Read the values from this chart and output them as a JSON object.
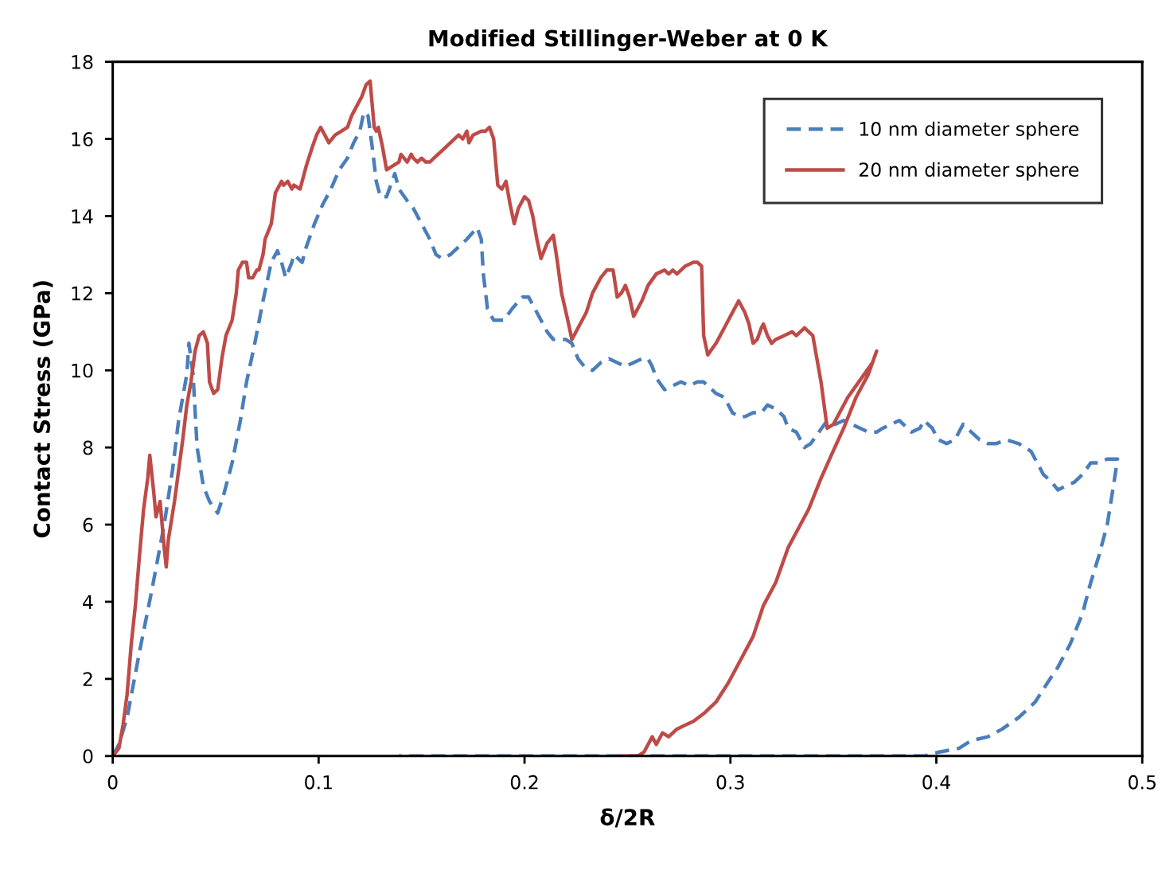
{
  "chart_data": {
    "type": "line",
    "title": "Modified Stillinger-Weber at 0 K",
    "xlabel": "δ/2R",
    "ylabel": "Contact Stress (GPa)",
    "xlim": [
      0,
      0.5
    ],
    "xticks": [
      0,
      0.1,
      0.2,
      0.3,
      0.4,
      0.5
    ],
    "ylim": [
      0,
      18
    ],
    "yticks": [
      0,
      2,
      4,
      6,
      8,
      10,
      12,
      14,
      16,
      18
    ],
    "grid": false,
    "legend": "top right",
    "marker": "none",
    "series": [
      {
        "name": "10 nm diameter sphere",
        "color": "#4a7ebb",
        "line_style": "dashed",
        "x": [
          0.0,
          0.003,
          0.007,
          0.013,
          0.019,
          0.025,
          0.029,
          0.032,
          0.036,
          0.037,
          0.039,
          0.041,
          0.044,
          0.047,
          0.051,
          0.054,
          0.058,
          0.062,
          0.065,
          0.069,
          0.073,
          0.077,
          0.08,
          0.082,
          0.084,
          0.087,
          0.088,
          0.092,
          0.094,
          0.098,
          0.102,
          0.106,
          0.11,
          0.114,
          0.117,
          0.12,
          0.122,
          0.124,
          0.126,
          0.128,
          0.13,
          0.133,
          0.135,
          0.137,
          0.139,
          0.143,
          0.146,
          0.15,
          0.154,
          0.157,
          0.16,
          0.164,
          0.168,
          0.172,
          0.177,
          0.179,
          0.18,
          0.182,
          0.185,
          0.19,
          0.194,
          0.199,
          0.202,
          0.205,
          0.208,
          0.211,
          0.214,
          0.22,
          0.223,
          0.226,
          0.229,
          0.233,
          0.237,
          0.241,
          0.245,
          0.249,
          0.253,
          0.257,
          0.26,
          0.262,
          0.264,
          0.268,
          0.272,
          0.276,
          0.28,
          0.284,
          0.287,
          0.291,
          0.293,
          0.297,
          0.301,
          0.304,
          0.307,
          0.311,
          0.315,
          0.318,
          0.322,
          0.326,
          0.328,
          0.332,
          0.336,
          0.339,
          0.343,
          0.347,
          0.351,
          0.355,
          0.359,
          0.363,
          0.367,
          0.371,
          0.374,
          0.378,
          0.382,
          0.384,
          0.388,
          0.392,
          0.394,
          0.398,
          0.401,
          0.405,
          0.409,
          0.413,
          0.417,
          0.421,
          0.425,
          0.429,
          0.434,
          0.44,
          0.446,
          0.449,
          0.452,
          0.456,
          0.459,
          0.463,
          0.467,
          0.471,
          0.475,
          0.479,
          0.483,
          0.488,
          0.486,
          0.483,
          0.479,
          0.475,
          0.471,
          0.465,
          0.459,
          0.454,
          0.448,
          0.44,
          0.432,
          0.425,
          0.417,
          0.411,
          0.401,
          0.394,
          0.386,
          0.139
        ],
        "values": [
          0,
          0.3,
          1.0,
          2.7,
          4.3,
          6.0,
          7.4,
          8.7,
          9.9,
          10.7,
          9.9,
          8.0,
          7.0,
          6.6,
          6.3,
          6.8,
          7.6,
          8.7,
          9.7,
          10.7,
          11.8,
          12.8,
          13.1,
          12.8,
          12.4,
          12.8,
          13.0,
          12.8,
          13.2,
          13.8,
          14.3,
          14.7,
          15.2,
          15.5,
          15.9,
          16.2,
          16.7,
          16.6,
          15.8,
          14.9,
          14.5,
          14.5,
          14.8,
          15.1,
          14.7,
          14.4,
          14.2,
          13.8,
          13.4,
          13.0,
          12.9,
          13.0,
          13.2,
          13.4,
          13.7,
          13.4,
          12.5,
          11.6,
          11.3,
          11.3,
          11.6,
          11.9,
          11.9,
          11.6,
          11.3,
          11.0,
          10.8,
          10.8,
          10.7,
          10.3,
          10.1,
          10.0,
          10.2,
          10.3,
          10.2,
          10.1,
          10.2,
          10.3,
          10.3,
          10.1,
          9.8,
          9.5,
          9.6,
          9.7,
          9.6,
          9.7,
          9.7,
          9.5,
          9.4,
          9.3,
          8.9,
          8.8,
          8.8,
          8.9,
          8.9,
          9.1,
          9.0,
          8.8,
          8.5,
          8.4,
          8.0,
          8.1,
          8.4,
          8.7,
          8.6,
          8.7,
          8.6,
          8.5,
          8.4,
          8.4,
          8.5,
          8.6,
          8.7,
          8.6,
          8.4,
          8.5,
          8.7,
          8.5,
          8.2,
          8.1,
          8.2,
          8.6,
          8.4,
          8.2,
          8.1,
          8.1,
          8.2,
          8.1,
          7.9,
          7.6,
          7.3,
          7.1,
          6.9,
          7.0,
          7.1,
          7.3,
          7.6,
          7.6,
          7.7,
          7.7,
          7.0,
          6.0,
          5.2,
          4.5,
          3.7,
          2.9,
          2.3,
          1.9,
          1.4,
          1.0,
          0.7,
          0.5,
          0.4,
          0.2,
          0.1,
          0,
          0,
          0
        ]
      },
      {
        "name": "20 nm diameter sphere",
        "color": "#be4b48",
        "line_style": "solid",
        "x": [
          0.0,
          0.003,
          0.005,
          0.007,
          0.009,
          0.011,
          0.013,
          0.015,
          0.017,
          0.018,
          0.02,
          0.021,
          0.023,
          0.025,
          0.026,
          0.027,
          0.03,
          0.032,
          0.034,
          0.036,
          0.038,
          0.04,
          0.042,
          0.044,
          0.046,
          0.047,
          0.049,
          0.051,
          0.053,
          0.055,
          0.058,
          0.06,
          0.061,
          0.063,
          0.065,
          0.066,
          0.068,
          0.07,
          0.071,
          0.073,
          0.074,
          0.077,
          0.079,
          0.082,
          0.083,
          0.085,
          0.087,
          0.088,
          0.091,
          0.094,
          0.097,
          0.099,
          0.101,
          0.103,
          0.105,
          0.108,
          0.111,
          0.114,
          0.116,
          0.117,
          0.119,
          0.121,
          0.123,
          0.125,
          0.127,
          0.128,
          0.129,
          0.131,
          0.133,
          0.136,
          0.139,
          0.14,
          0.143,
          0.145,
          0.146,
          0.148,
          0.15,
          0.152,
          0.154,
          0.156,
          0.16,
          0.164,
          0.168,
          0.17,
          0.172,
          0.173,
          0.175,
          0.179,
          0.181,
          0.183,
          0.185,
          0.187,
          0.189,
          0.191,
          0.193,
          0.195,
          0.197,
          0.2,
          0.202,
          0.204,
          0.206,
          0.208,
          0.211,
          0.214,
          0.216,
          0.218,
          0.221,
          0.223,
          0.226,
          0.23,
          0.233,
          0.237,
          0.24,
          0.243,
          0.245,
          0.247,
          0.249,
          0.251,
          0.253,
          0.257,
          0.26,
          0.264,
          0.268,
          0.27,
          0.272,
          0.274,
          0.276,
          0.278,
          0.282,
          0.284,
          0.286,
          0.287,
          0.289,
          0.293,
          0.297,
          0.301,
          0.304,
          0.307,
          0.309,
          0.311,
          0.313,
          0.315,
          0.316,
          0.318,
          0.32,
          0.322,
          0.326,
          0.33,
          0.332,
          0.336,
          0.338,
          0.34,
          0.344,
          0.347,
          0.35,
          0.353,
          0.357,
          0.361,
          0.365,
          0.369,
          0.371,
          0.367,
          0.361,
          0.355,
          0.349,
          0.344,
          0.338,
          0.332,
          0.328,
          0.322,
          0.316,
          0.311,
          0.305,
          0.299,
          0.293,
          0.287,
          0.282,
          0.278,
          0.274,
          0.27,
          0.267,
          0.264,
          0.262,
          0.258,
          0.255,
          0.247
        ],
        "values": [
          0,
          0.2,
          0.8,
          1.6,
          2.9,
          3.9,
          5.2,
          6.4,
          7.2,
          7.8,
          6.8,
          6.2,
          6.6,
          5.4,
          4.9,
          5.6,
          6.6,
          7.4,
          8.2,
          9.1,
          9.7,
          10.5,
          10.9,
          11.0,
          10.7,
          9.7,
          9.4,
          9.5,
          10.3,
          10.9,
          11.3,
          12.0,
          12.6,
          12.8,
          12.8,
          12.4,
          12.4,
          12.6,
          12.6,
          13.0,
          13.4,
          13.8,
          14.6,
          14.9,
          14.8,
          14.9,
          14.7,
          14.8,
          14.7,
          15.3,
          15.8,
          16.1,
          16.3,
          16.1,
          15.9,
          16.1,
          16.2,
          16.3,
          16.6,
          16.7,
          16.9,
          17.1,
          17.4,
          17.5,
          16.3,
          16.2,
          16.3,
          15.8,
          15.2,
          15.3,
          15.4,
          15.6,
          15.4,
          15.6,
          15.5,
          15.4,
          15.5,
          15.4,
          15.4,
          15.5,
          15.7,
          15.9,
          16.1,
          16.0,
          16.2,
          15.9,
          16.1,
          16.2,
          16.2,
          16.3,
          16.0,
          14.8,
          14.7,
          14.9,
          14.3,
          13.8,
          14.2,
          14.5,
          14.4,
          14.0,
          13.4,
          12.9,
          13.3,
          13.5,
          12.8,
          12.0,
          11.3,
          10.8,
          11.1,
          11.5,
          12.0,
          12.4,
          12.6,
          12.6,
          11.9,
          12.0,
          12.2,
          11.9,
          11.4,
          11.8,
          12.2,
          12.5,
          12.6,
          12.5,
          12.6,
          12.5,
          12.6,
          12.7,
          12.8,
          12.8,
          12.7,
          10.9,
          10.4,
          10.7,
          11.1,
          11.5,
          11.8,
          11.5,
          11.2,
          10.7,
          10.8,
          11.1,
          11.2,
          10.9,
          10.7,
          10.8,
          10.9,
          11.0,
          10.9,
          11.1,
          11.0,
          10.9,
          9.7,
          8.5,
          8.6,
          8.9,
          9.3,
          9.6,
          9.9,
          10.2,
          10.5,
          9.9,
          9.3,
          8.5,
          7.8,
          7.2,
          6.4,
          5.8,
          5.4,
          4.5,
          3.9,
          3.1,
          2.5,
          1.9,
          1.4,
          1.1,
          0.9,
          0.8,
          0.7,
          0.5,
          0.6,
          0.3,
          0.5,
          0.1,
          0,
          0
        ]
      }
    ]
  }
}
